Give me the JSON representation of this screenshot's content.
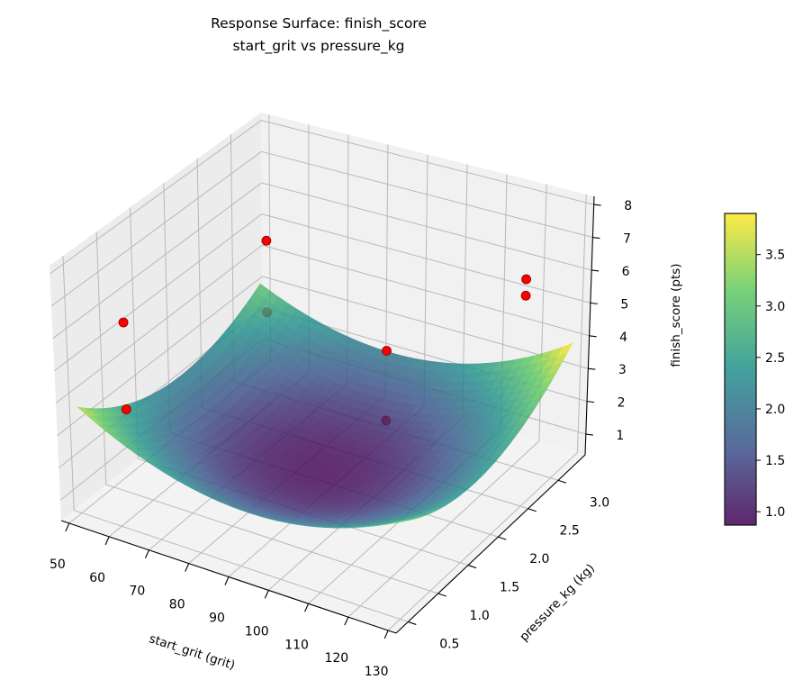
{
  "chart_data": {
    "type": "surface3d",
    "title": "Response Surface: finish_score",
    "subtitle": "start_grit vs pressure_kg",
    "xlabel": "start_grit (grit)",
    "ylabel": "pressure_kg (kg)",
    "zlabel": "finish_score (pts)",
    "xlim": [
      48,
      132
    ],
    "ylim": [
      0.3,
      3.45
    ],
    "zlim": [
      0.37,
      8.25
    ],
    "xticks": [
      "50",
      "60",
      "70",
      "80",
      "90",
      "100",
      "110",
      "120",
      "130"
    ],
    "yticks": [
      "0.5",
      "1.0",
      "1.5",
      "2.0",
      "2.5",
      "3.0"
    ],
    "zticks": [
      "1",
      "2",
      "3",
      "4",
      "5",
      "6",
      "7",
      "8"
    ],
    "grid": true,
    "colormap": "viridis",
    "surface_alpha": 0.82,
    "surface_model": {
      "x_center": 88,
      "x_halfwidth": 40,
      "y_center": 1.9,
      "y_halfwidth": 1.4,
      "min": 0.9,
      "ax": 1.4,
      "ay": 1.2,
      "axy": 0.3
    },
    "points": [
      {
        "x": 55,
        "y": 0.93,
        "z": 5.8
      },
      {
        "x": 55,
        "y": 0.93,
        "z": 3.1
      },
      {
        "x": 65,
        "y": 2.5,
        "z": 6.25
      },
      {
        "x": 65,
        "y": 2.5,
        "z": 4.0
      },
      {
        "x": 100,
        "y": 2.2,
        "z": 4.55
      },
      {
        "x": 100,
        "y": 2.2,
        "z": 2.4
      },
      {
        "x": 126,
        "y": 2.76,
        "z": 6.7
      },
      {
        "x": 126,
        "y": 2.76,
        "z": 6.2
      }
    ],
    "point_color": "#ff0000",
    "colorbar": {
      "range": [
        0.87,
        3.9
      ],
      "ticks": [
        "1.0",
        "1.5",
        "2.0",
        "2.5",
        "3.0",
        "3.5"
      ]
    }
  }
}
